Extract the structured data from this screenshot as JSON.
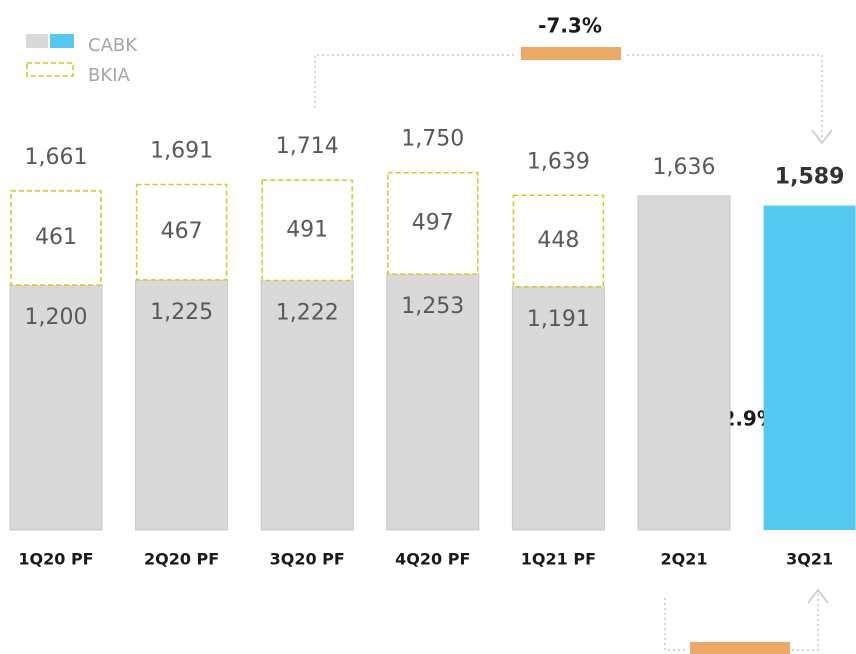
{
  "chart_data": {
    "type": "stacked_bar",
    "categories": [
      "1Q20 PF",
      "2Q20 PF",
      "3Q20 PF",
      "4Q20 PF",
      "1Q21 PF",
      "2Q21",
      "3Q21"
    ],
    "series": [
      {
        "name": "CABK",
        "color": "#d9d9d9",
        "colors": [
          "#d9d9d9",
          "#d9d9d9",
          "#d9d9d9",
          "#d9d9d9",
          "#d9d9d9",
          "#d9d9d9",
          "#55c9f2"
        ],
        "values": [
          1200,
          1225,
          1222,
          1253,
          1191,
          1636,
          1589
        ],
        "value_labels": [
          "1,200",
          "1,225",
          "1,222",
          "1,253",
          "1,191",
          "1,636",
          "1,589"
        ]
      },
      {
        "name": "BKIA",
        "color": "#d2c81e",
        "values": [
          461,
          467,
          491,
          497,
          448,
          null,
          null
        ]
      }
    ],
    "totals": [
      1661,
      1691,
      1714,
      1750,
      1639,
      null,
      null
    ],
    "total_labels": [
      "1,661",
      "1,691",
      "1,714",
      "1,750",
      "1,639",
      null,
      null
    ],
    "annotations": [
      "-7.3%",
      "-2.9%"
    ]
  }
}
